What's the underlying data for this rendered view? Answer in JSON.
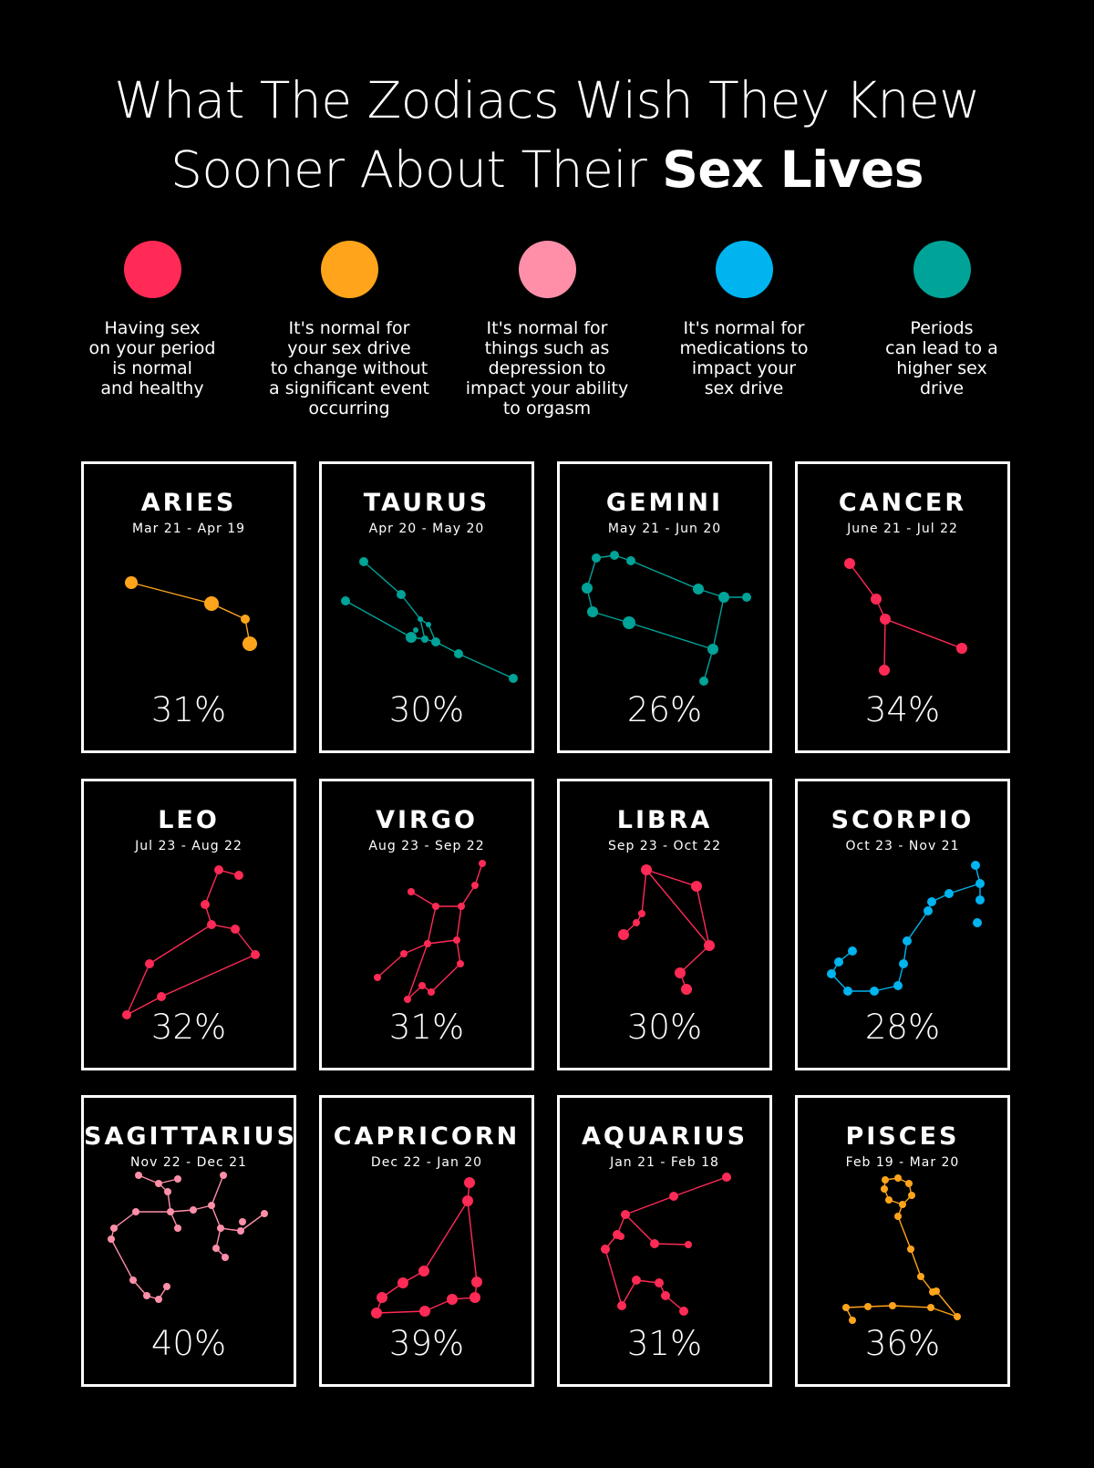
{
  "title": {
    "line1": "What The Zodiacs Wish They Knew",
    "line2_regular": "Sooner About Their",
    "line2_bold": "Sex Lives"
  },
  "colors": {
    "red": "#ff2a55",
    "orange": "#ffa41b",
    "pink": "#ff8fa9",
    "blue": "#00b4ef",
    "teal": "#00a398"
  },
  "legend": [
    {
      "color": "#ff2a55",
      "text": "Having sex\non your period\nis normal\nand healthy"
    },
    {
      "color": "#ffa41b",
      "text": "It's normal for\nyour sex drive\nto change without\na significant event\noccurring"
    },
    {
      "color": "#ff8fa9",
      "text": "It's normal for\nthings such as\ndepression to\nimpact your ability\nto orgasm"
    },
    {
      "color": "#00b4ef",
      "text": "It's normal for\nmedications to\nimpact your\nsex drive"
    },
    {
      "color": "#00a398",
      "text": "Periods\ncan lead to a\nhigher sex\ndrive"
    }
  ],
  "signs": [
    {
      "name": "ARIES",
      "dates": "Mar 21 - Apr 19",
      "percent": "31%",
      "value": 31,
      "color": "#ffa41b"
    },
    {
      "name": "TAURUS",
      "dates": "Apr 20 - May 20",
      "percent": "30%",
      "value": 30,
      "color": "#00a398"
    },
    {
      "name": "GEMINI",
      "dates": "May 21 - Jun 20",
      "percent": "26%",
      "value": 26,
      "color": "#00a398"
    },
    {
      "name": "CANCER",
      "dates": "June 21 - Jul 22",
      "percent": "34%",
      "value": 34,
      "color": "#ff2a55"
    },
    {
      "name": "LEO",
      "dates": "Jul 23 - Aug 22",
      "percent": "32%",
      "value": 32,
      "color": "#ff2a55"
    },
    {
      "name": "VIRGO",
      "dates": "Aug 23 - Sep 22",
      "percent": "31%",
      "value": 31,
      "color": "#ff2a55"
    },
    {
      "name": "LIBRA",
      "dates": "Sep 23 - Oct 22",
      "percent": "30%",
      "value": 30,
      "color": "#ff2a55"
    },
    {
      "name": "SCORPIO",
      "dates": "Oct 23 - Nov 21",
      "percent": "28%",
      "value": 28,
      "color": "#00b4ef"
    },
    {
      "name": "SAGITTARIUS",
      "dates": "Nov 22 - Dec 21",
      "percent": "40%",
      "value": 40,
      "color": "#ff8fa9"
    },
    {
      "name": "CAPRICORN",
      "dates": "Dec 22 - Jan 20",
      "percent": "39%",
      "value": 39,
      "color": "#ff2a55"
    },
    {
      "name": "AQUARIUS",
      "dates": "Jan 21 - Feb 18",
      "percent": "31%",
      "value": 31,
      "color": "#ff2a55"
    },
    {
      "name": "PISCES",
      "dates": "Feb 19 - Mar 20",
      "percent": "36%",
      "value": 36,
      "color": "#ffa41b"
    }
  ]
}
